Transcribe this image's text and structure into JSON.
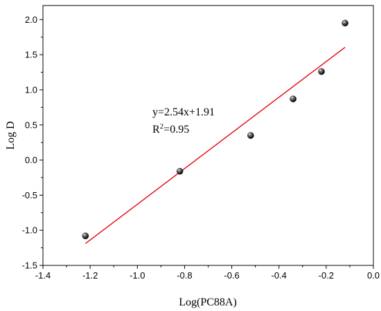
{
  "chart_data": {
    "type": "scatter",
    "xlabel": "Log(PC88A)",
    "ylabel": "Log D",
    "xlim": [
      -1.4,
      0.0
    ],
    "ylim": [
      -1.5,
      2.2
    ],
    "xticks": [
      -1.4,
      -1.2,
      -1.0,
      -0.8,
      -0.6,
      -0.4,
      -0.2,
      0.0
    ],
    "xtick_labels": [
      "-1.4",
      "-1.2",
      "-1.0",
      "-0.8",
      "-0.6",
      "-0.4",
      "-0.2",
      "0.0"
    ],
    "yticks": [
      -1.5,
      -1.0,
      -0.5,
      0.0,
      0.5,
      1.0,
      1.5,
      2.0
    ],
    "ytick_labels": [
      "-1.5",
      "-1.0",
      "-0.5",
      "0.0",
      "0.5",
      "1.0",
      "1.5",
      "2.0"
    ],
    "grid": false,
    "series": [
      {
        "type": "scatter",
        "color": "#000000",
        "points": [
          {
            "x": -1.22,
            "y": -1.08
          },
          {
            "x": -0.82,
            "y": -0.16
          },
          {
            "x": -0.52,
            "y": 0.35
          },
          {
            "x": -0.34,
            "y": 0.87
          },
          {
            "x": -0.22,
            "y": 1.26
          },
          {
            "x": -0.12,
            "y": 1.95
          }
        ]
      },
      {
        "type": "line",
        "color": "#e8000b",
        "slope": 2.54,
        "intercept": 1.91,
        "x_range": [
          -1.22,
          -0.12
        ]
      }
    ],
    "annotations": {
      "equation": "y=2.54x+1.91",
      "r2_prefix": "R",
      "r2_exponent": "2",
      "r2_value": "=0.95"
    }
  }
}
